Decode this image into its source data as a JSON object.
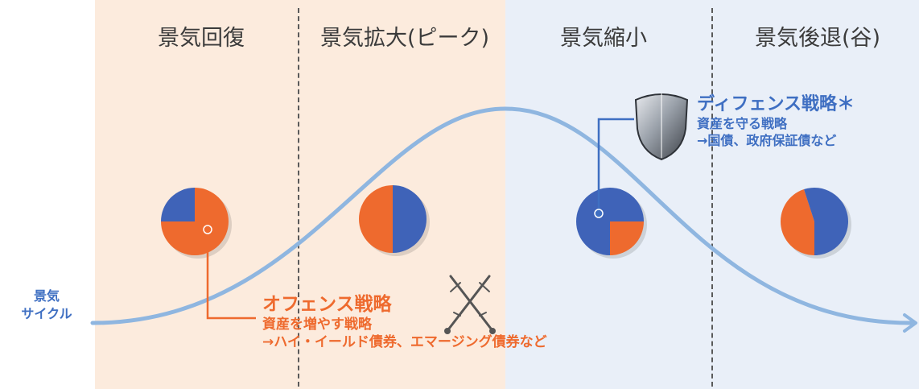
{
  "phases": [
    {
      "label": "景気回復"
    },
    {
      "label": "景気拡大(ピーク)"
    },
    {
      "label": "景気縮小"
    },
    {
      "label": "景気後退(谷)"
    }
  ],
  "cycle_label": {
    "line1": "景気",
    "line2": "サイクル"
  },
  "offense": {
    "title": "オフェンス戦略",
    "line1": "資産を増やす戦略",
    "line2": "→ハイ・イールド債券、エマージング債券など"
  },
  "defense": {
    "title": "ディフェンス戦略＊",
    "line1": "資産を守る戦略",
    "line2": "→国債、政府保証債など"
  },
  "allocations": [
    {
      "phase": "景気回復",
      "offense_share": 0.75
    },
    {
      "phase": "景気拡大(ピーク)",
      "offense_share": 0.5
    },
    {
      "phase": "景気縮小",
      "offense_share": 0.25
    },
    {
      "phase": "景気後退(谷)",
      "offense_share": 0.45
    }
  ],
  "colors": {
    "offense": "#ee6a2e",
    "defense": "#3f63b8",
    "curve": "#8fb6e0",
    "warm_zone": "#fcebdd",
    "cool_zone": "#e9eff8"
  },
  "icons": {
    "offense": "crossed-swords-icon",
    "defense": "shield-icon"
  }
}
